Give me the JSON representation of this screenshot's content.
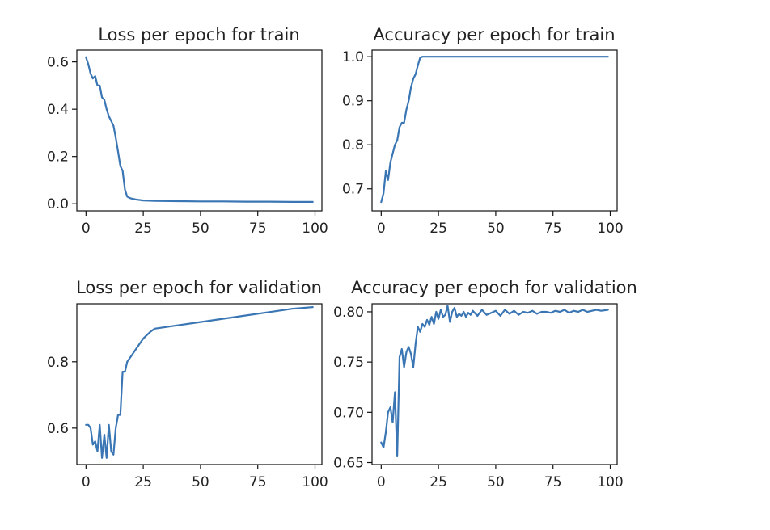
{
  "chart_data": [
    {
      "type": "line",
      "title": "Loss per epoch for train",
      "xlabel": "",
      "ylabel": "",
      "xlim": [
        -4,
        103
      ],
      "ylim": [
        -0.03,
        0.65
      ],
      "xticks": [
        0,
        25,
        50,
        75,
        100
      ],
      "xtick_labels": [
        "0",
        "25",
        "50",
        "75",
        "100"
      ],
      "yticks": [
        0.0,
        0.2,
        0.4,
        0.6
      ],
      "ytick_labels": [
        "0.0",
        "0.2",
        "0.4",
        "0.6"
      ],
      "grid": false,
      "series": [
        {
          "x": [
            0,
            1,
            2,
            3,
            4,
            5,
            6,
            7,
            8,
            9,
            10,
            11,
            12,
            13,
            14,
            15,
            16,
            17,
            18,
            19,
            20,
            22,
            25,
            30,
            40,
            50,
            60,
            70,
            80,
            90,
            99
          ],
          "values": [
            0.62,
            0.59,
            0.55,
            0.53,
            0.54,
            0.5,
            0.5,
            0.45,
            0.44,
            0.4,
            0.37,
            0.35,
            0.33,
            0.28,
            0.22,
            0.16,
            0.14,
            0.06,
            0.03,
            0.025,
            0.022,
            0.018,
            0.014,
            0.012,
            0.011,
            0.01,
            0.01,
            0.009,
            0.009,
            0.008,
            0.008
          ]
        }
      ]
    },
    {
      "type": "line",
      "title": "Accuracy per epoch for train",
      "xlabel": "",
      "ylabel": "",
      "xlim": [
        -4,
        103
      ],
      "ylim": [
        0.65,
        1.015
      ],
      "xticks": [
        0,
        25,
        50,
        75,
        100
      ],
      "xtick_labels": [
        "0",
        "25",
        "50",
        "75",
        "100"
      ],
      "yticks": [
        0.7,
        0.8,
        0.9,
        1.0
      ],
      "ytick_labels": [
        "0.7",
        "0.8",
        "0.9",
        "1.0"
      ],
      "grid": false,
      "series": [
        {
          "x": [
            0,
            1,
            2,
            3,
            4,
            5,
            6,
            7,
            8,
            9,
            10,
            11,
            12,
            13,
            14,
            15,
            16,
            17,
            18,
            20,
            25,
            30,
            40,
            50,
            60,
            70,
            80,
            90,
            99
          ],
          "values": [
            0.67,
            0.69,
            0.74,
            0.72,
            0.76,
            0.78,
            0.8,
            0.81,
            0.84,
            0.85,
            0.85,
            0.88,
            0.9,
            0.93,
            0.95,
            0.96,
            0.98,
            0.998,
            1.0,
            1.0,
            1.0,
            1.0,
            1.0,
            1.0,
            1.0,
            1.0,
            1.0,
            1.0,
            1.0
          ]
        }
      ]
    },
    {
      "type": "line",
      "title": "Loss per epoch for validation",
      "xlabel": "",
      "ylabel": "",
      "xlim": [
        -4,
        103
      ],
      "ylim": [
        0.49,
        0.975
      ],
      "xticks": [
        0,
        25,
        50,
        75,
        100
      ],
      "xtick_labels": [
        "0",
        "25",
        "50",
        "75",
        "100"
      ],
      "yticks": [
        0.6,
        0.8
      ],
      "ytick_labels": [
        "0.6",
        "0.8"
      ],
      "grid": false,
      "series": [
        {
          "x": [
            0,
            1,
            2,
            3,
            4,
            5,
            6,
            7,
            8,
            9,
            10,
            11,
            12,
            13,
            14,
            15,
            16,
            17,
            18,
            20,
            22,
            25,
            28,
            30,
            40,
            50,
            60,
            70,
            80,
            90,
            99
          ],
          "values": [
            0.61,
            0.61,
            0.6,
            0.55,
            0.56,
            0.53,
            0.61,
            0.51,
            0.58,
            0.51,
            0.61,
            0.53,
            0.52,
            0.6,
            0.64,
            0.64,
            0.77,
            0.77,
            0.8,
            0.82,
            0.84,
            0.87,
            0.89,
            0.9,
            0.91,
            0.92,
            0.93,
            0.94,
            0.95,
            0.96,
            0.965
          ]
        }
      ]
    },
    {
      "type": "line",
      "title": "Accuracy per epoch for validation",
      "xlabel": "",
      "ylabel": "",
      "xlim": [
        -4,
        103
      ],
      "ylim": [
        0.648,
        0.808
      ],
      "xticks": [
        0,
        25,
        50,
        75,
        100
      ],
      "xtick_labels": [
        "0",
        "25",
        "50",
        "75",
        "100"
      ],
      "yticks": [
        0.65,
        0.7,
        0.75,
        0.8
      ],
      "ytick_labels": [
        "0.65",
        "0.70",
        "0.75",
        "0.80"
      ],
      "grid": false,
      "series": [
        {
          "x": [
            0,
            1,
            2,
            3,
            4,
            5,
            6,
            7,
            8,
            9,
            10,
            11,
            12,
            13,
            14,
            15,
            16,
            17,
            18,
            19,
            20,
            21,
            22,
            23,
            24,
            25,
            26,
            27,
            28,
            29,
            30,
            31,
            32,
            33,
            34,
            35,
            36,
            37,
            38,
            39,
            40,
            42,
            44,
            46,
            48,
            50,
            52,
            54,
            56,
            58,
            60,
            62,
            64,
            66,
            68,
            70,
            72,
            74,
            76,
            78,
            80,
            82,
            84,
            86,
            88,
            90,
            92,
            94,
            96,
            99
          ],
          "values": [
            0.67,
            0.665,
            0.68,
            0.7,
            0.705,
            0.69,
            0.72,
            0.656,
            0.755,
            0.763,
            0.745,
            0.76,
            0.765,
            0.758,
            0.745,
            0.768,
            0.785,
            0.78,
            0.788,
            0.785,
            0.792,
            0.787,
            0.795,
            0.788,
            0.8,
            0.793,
            0.802,
            0.795,
            0.797,
            0.806,
            0.79,
            0.8,
            0.804,
            0.795,
            0.798,
            0.796,
            0.8,
            0.795,
            0.799,
            0.797,
            0.801,
            0.796,
            0.802,
            0.797,
            0.799,
            0.801,
            0.796,
            0.802,
            0.798,
            0.801,
            0.797,
            0.8,
            0.799,
            0.801,
            0.798,
            0.8,
            0.8,
            0.799,
            0.801,
            0.8,
            0.802,
            0.799,
            0.801,
            0.8,
            0.802,
            0.8,
            0.801,
            0.802,
            0.801,
            0.802
          ]
        }
      ]
    }
  ],
  "colors": {
    "line": "#3a76b4",
    "axes": "#111111",
    "text": "#222222",
    "background": "#ffffff"
  }
}
